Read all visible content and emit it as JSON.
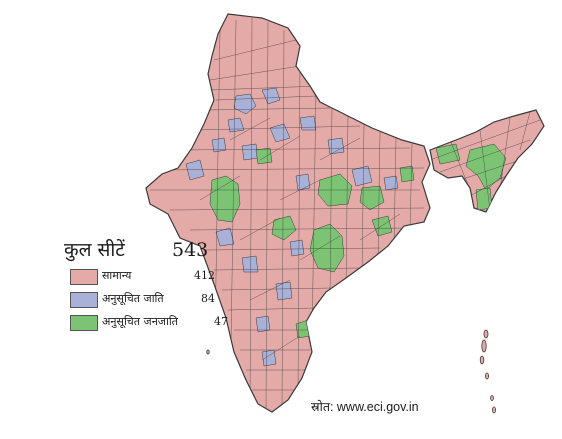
{
  "legend": {
    "title": "कुल सीटें",
    "total": "543",
    "categories": [
      {
        "label": "सामान्य",
        "value": "412",
        "color": "#e4aaa8"
      },
      {
        "label": "अनुसूचित जाति",
        "value": "84",
        "color": "#a9b1d8"
      },
      {
        "label": "अनुसूचित जनजाति",
        "value": "47",
        "color": "#7cc474"
      }
    ]
  },
  "source": "स्रोत: www.eci.gov.in",
  "colors": {
    "general": "#e4aaa8",
    "scheduled_caste": "#a9b1d8",
    "scheduled_tribe": "#7cc474",
    "border": "#3a3a3a"
  }
}
